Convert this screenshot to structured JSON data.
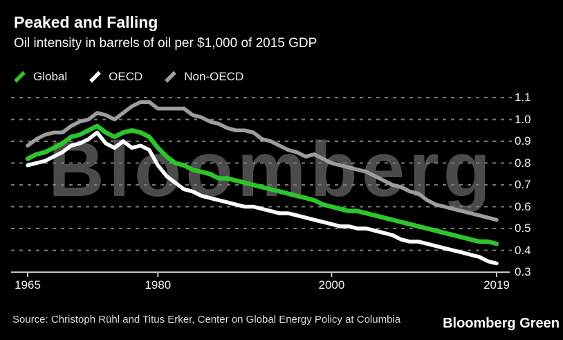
{
  "header": {
    "title": "Peaked and Falling",
    "subtitle": "Oil intensity in barrels of oil per $1,000 of 2015 GDP"
  },
  "legend": {
    "items": [
      {
        "label": "Global",
        "color": "#2cc52c"
      },
      {
        "label": "OECD",
        "color": "#ffffff"
      },
      {
        "label": "Non-OECD",
        "color": "#9d9d9d"
      }
    ]
  },
  "watermark": "Bloomberg",
  "source": {
    "text": "Source: Christoph Rühl and Titus Erker, Center on Global Energy Policy at Columbia"
  },
  "brand": {
    "text": "Bloomberg Green"
  },
  "chart_data": {
    "type": "line",
    "title": "Peaked and Falling",
    "subtitle": "Oil intensity in barrels of oil per $1,000 of 2015 GDP",
    "xlabel": "",
    "ylabel": "Barrels of oil per $1,000 of 2015 GDP",
    "xlim": [
      1965,
      2019
    ],
    "ylim": [
      0.3,
      1.1
    ],
    "x_ticks": [
      1965,
      1980,
      2000,
      2019
    ],
    "y_ticks": [
      1.1,
      1.0,
      0.9,
      0.8,
      0.7,
      0.6,
      0.5,
      0.4,
      0.3
    ],
    "grid": "horizontal-dashed",
    "legend_position": "top-left",
    "axis_label_side": "right",
    "colors": {
      "background": "#000000",
      "gridline": "#7a7a7a",
      "axis": "#c6c6c6",
      "tick_label": "#f2f2f2",
      "watermark": "#4b4b4b"
    },
    "x": [
      1965,
      1966,
      1967,
      1968,
      1969,
      1970,
      1971,
      1972,
      1973,
      1974,
      1975,
      1976,
      1977,
      1978,
      1979,
      1980,
      1981,
      1982,
      1983,
      1984,
      1985,
      1986,
      1987,
      1988,
      1989,
      1990,
      1991,
      1992,
      1993,
      1994,
      1995,
      1996,
      1997,
      1998,
      1999,
      2000,
      2001,
      2002,
      2003,
      2004,
      2005,
      2006,
      2007,
      2008,
      2009,
      2010,
      2011,
      2012,
      2013,
      2014,
      2015,
      2016,
      2017,
      2018,
      2019
    ],
    "series": [
      {
        "name": "Global",
        "color": "#2cc52c",
        "values": [
          0.82,
          0.84,
          0.85,
          0.87,
          0.89,
          0.92,
          0.93,
          0.95,
          0.97,
          0.94,
          0.92,
          0.94,
          0.95,
          0.94,
          0.92,
          0.87,
          0.83,
          0.8,
          0.79,
          0.77,
          0.76,
          0.75,
          0.73,
          0.73,
          0.72,
          0.71,
          0.7,
          0.69,
          0.68,
          0.67,
          0.66,
          0.65,
          0.64,
          0.63,
          0.61,
          0.6,
          0.59,
          0.58,
          0.58,
          0.57,
          0.56,
          0.55,
          0.54,
          0.53,
          0.52,
          0.51,
          0.5,
          0.49,
          0.48,
          0.47,
          0.46,
          0.45,
          0.44,
          0.44,
          0.43
        ]
      },
      {
        "name": "OECD",
        "color": "#ffffff",
        "values": [
          0.79,
          0.8,
          0.81,
          0.83,
          0.85,
          0.88,
          0.89,
          0.91,
          0.94,
          0.89,
          0.87,
          0.9,
          0.87,
          0.88,
          0.86,
          0.79,
          0.74,
          0.71,
          0.68,
          0.67,
          0.65,
          0.64,
          0.63,
          0.62,
          0.61,
          0.6,
          0.6,
          0.59,
          0.58,
          0.57,
          0.57,
          0.56,
          0.55,
          0.54,
          0.53,
          0.52,
          0.51,
          0.51,
          0.5,
          0.5,
          0.49,
          0.48,
          0.47,
          0.45,
          0.44,
          0.44,
          0.43,
          0.42,
          0.41,
          0.4,
          0.39,
          0.38,
          0.37,
          0.35,
          0.34
        ]
      },
      {
        "name": "Non-OECD",
        "color": "#9d9d9d",
        "values": [
          0.88,
          0.91,
          0.93,
          0.94,
          0.94,
          0.97,
          0.99,
          1.0,
          1.03,
          1.02,
          1.0,
          1.03,
          1.06,
          1.08,
          1.08,
          1.05,
          1.05,
          1.05,
          1.05,
          1.02,
          1.01,
          0.99,
          0.98,
          0.96,
          0.95,
          0.95,
          0.94,
          0.91,
          0.9,
          0.88,
          0.86,
          0.85,
          0.83,
          0.84,
          0.82,
          0.8,
          0.79,
          0.78,
          0.77,
          0.76,
          0.74,
          0.72,
          0.7,
          0.69,
          0.67,
          0.66,
          0.63,
          0.61,
          0.6,
          0.59,
          0.58,
          0.57,
          0.56,
          0.55,
          0.54
        ]
      }
    ]
  }
}
